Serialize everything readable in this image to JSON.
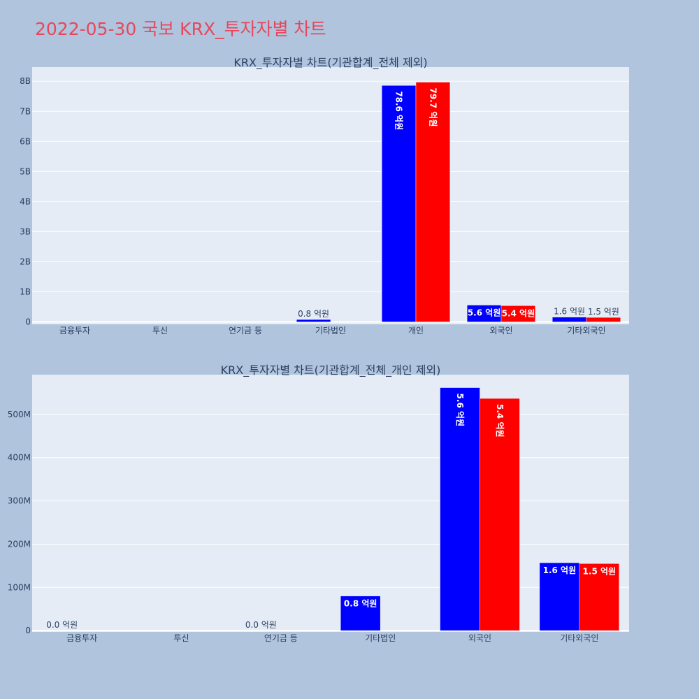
{
  "page": {
    "title": "2022-05-30 국보 KRX_투자자별 차트"
  },
  "colors": {
    "background": "#b0c4de",
    "plot_background": "#e5ecf6",
    "title": "#e8475b",
    "text": "#2a3f5f",
    "series_a": "#0000ff",
    "series_b": "#ff0000"
  },
  "chart_data": [
    {
      "type": "bar",
      "title": "KRX_투자자별 차트(기관합계_전체 제외)",
      "categories": [
        "금융투자",
        "투신",
        "연기금 등",
        "기타법인",
        "개인",
        "외국인",
        "기타외국인"
      ],
      "y_ticks": [
        {
          "value": 0,
          "label": "0"
        },
        {
          "value": 1000000000,
          "label": "1B"
        },
        {
          "value": 2000000000,
          "label": "2B"
        },
        {
          "value": 3000000000,
          "label": "3B"
        },
        {
          "value": 4000000000,
          "label": "4B"
        },
        {
          "value": 5000000000,
          "label": "5B"
        },
        {
          "value": 6000000000,
          "label": "6B"
        },
        {
          "value": 7000000000,
          "label": "7B"
        },
        {
          "value": 8000000000,
          "label": "8B"
        }
      ],
      "ylim": [
        -80000000,
        8470000000
      ],
      "grid": true,
      "series": [
        {
          "color": "#0000ff",
          "values": [
            0,
            0,
            0,
            80000000,
            7860000000,
            560000000,
            160000000
          ],
          "labels": [
            "",
            "",
            "",
            "0.8 억원",
            "78.6 억원",
            "5.6 억원",
            "1.6 억원"
          ]
        },
        {
          "color": "#ff0000",
          "values": [
            0,
            0,
            0,
            0,
            7970000000,
            540000000,
            150000000
          ],
          "labels": [
            "",
            "",
            "",
            "",
            "79.7 억원",
            "5.4 억원",
            "1.5 억원"
          ]
        }
      ]
    },
    {
      "type": "bar",
      "title": "KRX_투자자별 차트(기관합계_전체_개인 제외)",
      "categories": [
        "금융투자",
        "투신",
        "연기금 등",
        "기타법인",
        "외국인",
        "기타외국인"
      ],
      "y_ticks": [
        {
          "value": 0,
          "label": "0"
        },
        {
          "value": 100000000,
          "label": "100M"
        },
        {
          "value": 200000000,
          "label": "200M"
        },
        {
          "value": 300000000,
          "label": "300M"
        },
        {
          "value": 400000000,
          "label": "400M"
        },
        {
          "value": 500000000,
          "label": "500M"
        }
      ],
      "ylim": [
        -3000000,
        592000000
      ],
      "grid": true,
      "series": [
        {
          "color": "#0000ff",
          "values": [
            0,
            0,
            0,
            80000000,
            562000000,
            157000000
          ],
          "labels": [
            "0.0 억원",
            "",
            "0.0 억원",
            "0.8 억원",
            "5.6 억원",
            "1.6 억원"
          ]
        },
        {
          "color": "#ff0000",
          "values": [
            0,
            0,
            0,
            0,
            537000000,
            155000000
          ],
          "labels": [
            "",
            "",
            "",
            "",
            "5.4 억원",
            "1.5 억원"
          ]
        }
      ]
    }
  ]
}
